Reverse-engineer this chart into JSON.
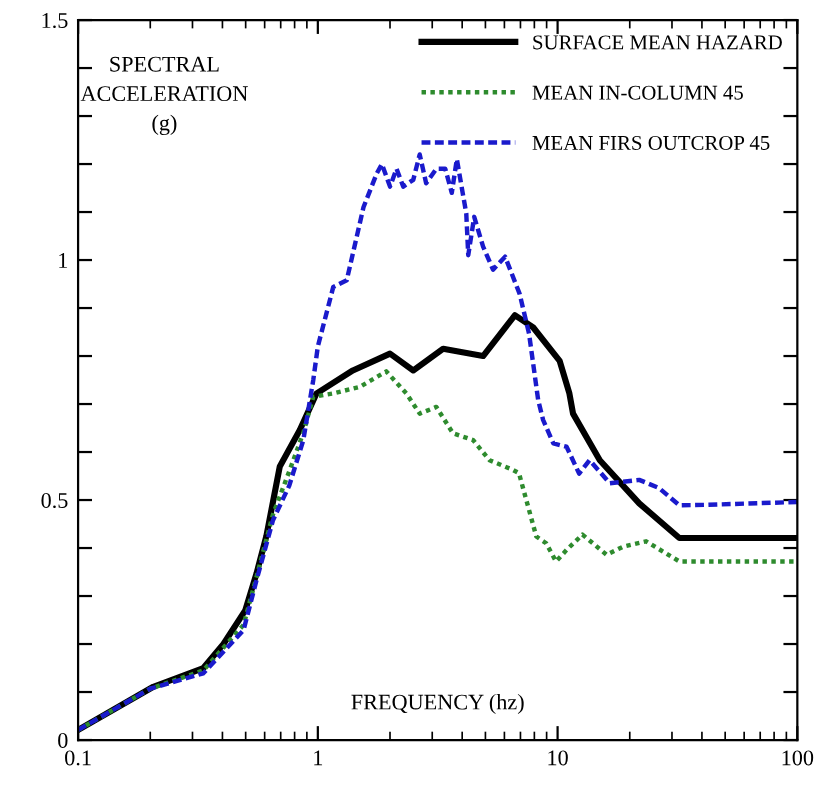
{
  "chart_data": {
    "type": "line",
    "ylabel": "SPECTRAL\nACCELERATION\n(g)",
    "xlabel": "FREQUENCY (hz)",
    "log": "x",
    "xlim": [
      0.1,
      100
    ],
    "xticks": [
      0.1,
      1,
      10,
      100
    ],
    "ylim": [
      0,
      1.5
    ],
    "yticks": [
      0,
      {
        "value": 0.1,
        "label": null
      },
      {
        "value": 0.2,
        "label": null
      },
      {
        "value": 0.3,
        "label": null
      },
      {
        "value": 0.4,
        "label": null
      },
      0.5,
      {
        "value": 0.6,
        "label": null
      },
      {
        "value": 0.7,
        "label": null
      },
      {
        "value": 0.8,
        "label": null
      },
      {
        "value": 0.9,
        "label": null
      },
      1,
      {
        "value": 1.1,
        "label": null
      },
      {
        "value": 1.2,
        "label": null
      },
      {
        "value": 1.3,
        "label": null
      },
      {
        "value": 1.4,
        "label": null
      },
      1.5
    ],
    "grid": false,
    "legend": "top right",
    "series": [
      {
        "name": "SURFACE MEAN HAZARD",
        "color": "#000000",
        "line_style": "solid",
        "x": [
          0.1,
          0.206,
          0.333,
          0.404,
          0.498,
          0.555,
          0.61,
          0.694,
          0.841,
          0.987,
          1.4,
          2.0,
          2.5,
          3.33,
          4.89,
          6.64,
          7.9,
          10.2,
          11.2,
          11.6,
          15,
          21.9,
          32.2,
          100
        ],
        "values": [
          0.021,
          0.111,
          0.15,
          0.2,
          0.27,
          0.347,
          0.425,
          0.57,
          0.646,
          0.722,
          0.77,
          0.805,
          0.77,
          0.815,
          0.8,
          0.885,
          0.86,
          0.79,
          0.722,
          0.68,
          0.583,
          0.493,
          0.421,
          0.421
        ]
      },
      {
        "name": "MEAN IN-COLUMN 45",
        "color": "#2e8b2e",
        "line_style": "dotted",
        "x": [
          0.1,
          0.2,
          0.333,
          0.49,
          0.555,
          0.65,
          0.76,
          0.87,
          0.957,
          1.16,
          1.5,
          1.93,
          2.34,
          2.66,
          3.12,
          3.66,
          4.44,
          5.2,
          6.5,
          6.9,
          8.15,
          8.96,
          9.85,
          10.9,
          12.7,
          16,
          18.8,
          23.4,
          32.2,
          53,
          100
        ],
        "values": [
          0.021,
          0.107,
          0.145,
          0.24,
          0.34,
          0.47,
          0.56,
          0.64,
          0.715,
          0.722,
          0.736,
          0.768,
          0.722,
          0.68,
          0.694,
          0.639,
          0.625,
          0.583,
          0.563,
          0.556,
          0.424,
          0.41,
          0.372,
          0.396,
          0.428,
          0.386,
          0.403,
          0.414,
          0.372,
          0.372,
          0.372
        ]
      },
      {
        "name": "MEAN FIRS OUTCROP 45",
        "color": "#1a1acc",
        "line_style": "dashed",
        "x": [
          0.1,
          0.2,
          0.333,
          0.49,
          0.555,
          0.65,
          0.76,
          0.87,
          0.957,
          1.0,
          1.16,
          1.32,
          1.55,
          1.76,
          1.85,
          2.0,
          2.13,
          2.27,
          2.5,
          2.66,
          2.83,
          3.12,
          3.4,
          3.62,
          3.8,
          4.16,
          4.24,
          4.49,
          4.89,
          5.38,
          6.04,
          6.94,
          7.6,
          8.3,
          8.7,
          9.6,
          10.9,
          12.3,
          13.6,
          16.5,
          21.9,
          26.5,
          32.2,
          42,
          100
        ],
        "values": [
          0.021,
          0.107,
          0.139,
          0.229,
          0.333,
          0.458,
          0.53,
          0.625,
          0.75,
          0.82,
          0.944,
          0.958,
          1.11,
          1.18,
          1.2,
          1.153,
          1.19,
          1.153,
          1.167,
          1.22,
          1.16,
          1.19,
          1.19,
          1.14,
          1.21,
          1.097,
          1.01,
          1.09,
          1.028,
          0.98,
          1.007,
          0.93,
          0.847,
          0.708,
          0.667,
          0.618,
          0.611,
          0.555,
          0.583,
          0.535,
          0.542,
          0.525,
          0.489,
          0.49,
          0.496
        ]
      }
    ]
  }
}
